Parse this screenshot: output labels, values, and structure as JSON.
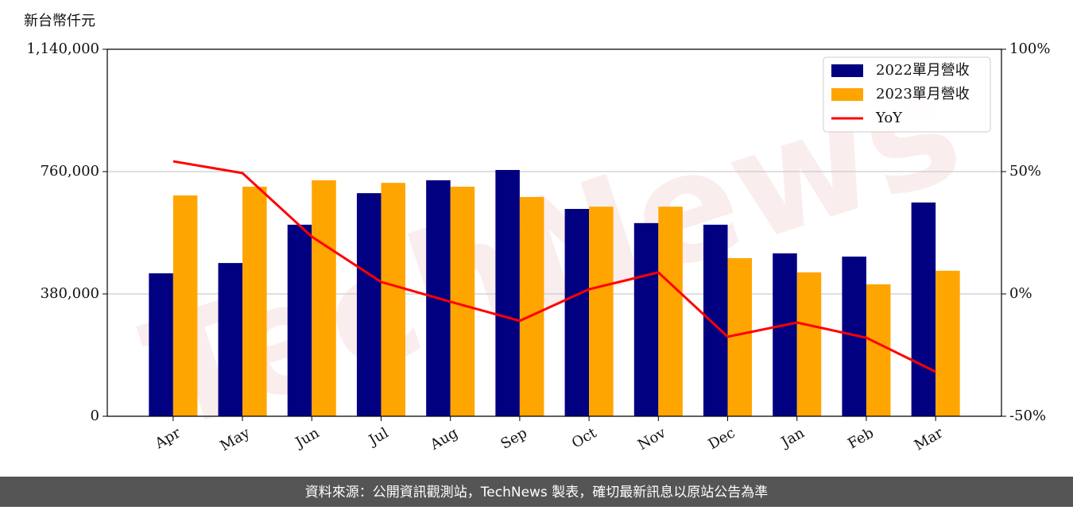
{
  "chart_data": {
    "type": "bar",
    "unit_label": "新台幣仟元",
    "watermark": "TechNews",
    "source": "資料來源：公開資訊觀測站，TechNews 製表，確切最新訊息以原站公告為準",
    "categories": [
      "Apr",
      "May",
      "Jun",
      "Jul",
      "Aug",
      "Sep",
      "Oct",
      "Nov",
      "Dec",
      "Jan",
      "Feb",
      "Mar"
    ],
    "series": [
      {
        "name": "2022單月營收",
        "color": "#000080",
        "values": [
          444000,
          476000,
          595000,
          693000,
          733000,
          765000,
          644000,
          600000,
          595000,
          506000,
          496000,
          664000
        ]
      },
      {
        "name": "2023單月營收",
        "color": "#ffa500",
        "values": [
          686000,
          713000,
          733000,
          725000,
          713000,
          681000,
          651000,
          651000,
          491000,
          447000,
          410000,
          452000
        ]
      },
      {
        "name": "YoY",
        "type": "line",
        "axis": "y2",
        "color": "#ff0000",
        "values": [
          54.2,
          49.4,
          23.4,
          4.9,
          -3.2,
          -11.0,
          1.9,
          8.8,
          -17.5,
          -11.7,
          -17.9,
          -31.8
        ]
      }
    ],
    "ylim": [
      0,
      1140000
    ],
    "yticks": [
      0,
      {
        "value": 380000,
        "label": "380,000"
      },
      {
        "value": 760000,
        "label": "760,000"
      },
      {
        "value": 1140000,
        "label": "1,140,000"
      }
    ],
    "y2lim": [
      -50,
      100
    ],
    "y2ticks": [
      {
        "value": -50,
        "label": "-50%"
      },
      {
        "value": 0,
        "label": "0%"
      },
      {
        "value": 50,
        "label": "50%"
      },
      {
        "value": 100,
        "label": "100%"
      }
    ],
    "grid": true,
    "legend": "upper right"
  }
}
